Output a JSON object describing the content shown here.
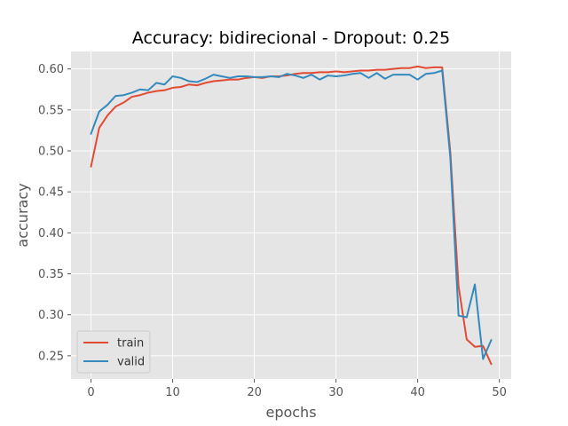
{
  "chart_data": {
    "type": "line",
    "title": "Accuracy: bidirecional - Dropout: 0.25",
    "xlabel": "epochs",
    "ylabel": "accuracy",
    "xlim": [
      -2.45,
      51.45
    ],
    "ylim": [
      0.2217,
      0.6213
    ],
    "x_ticks": [
      0,
      10,
      20,
      30,
      40,
      50
    ],
    "y_ticks": [
      0.25,
      0.3,
      0.35,
      0.4,
      0.45,
      0.5,
      0.55,
      0.6
    ],
    "grid": true,
    "legend_position": "lower-left",
    "background_color": "#e5e5e5",
    "grid_color": "#ffffff",
    "x": [
      0,
      1,
      2,
      3,
      4,
      5,
      6,
      7,
      8,
      9,
      10,
      11,
      12,
      13,
      14,
      15,
      16,
      17,
      18,
      19,
      20,
      21,
      22,
      23,
      24,
      25,
      26,
      27,
      28,
      29,
      30,
      31,
      32,
      33,
      34,
      35,
      36,
      37,
      38,
      39,
      40,
      41,
      42,
      43,
      44,
      45,
      46,
      47,
      48,
      49
    ],
    "series": [
      {
        "name": "train",
        "color": "#e24a33",
        "values": [
          0.481,
          0.528,
          0.543,
          0.554,
          0.559,
          0.566,
          0.568,
          0.571,
          0.573,
          0.574,
          0.577,
          0.578,
          0.581,
          0.58,
          0.583,
          0.585,
          0.586,
          0.587,
          0.587,
          0.589,
          0.59,
          0.589,
          0.591,
          0.591,
          0.592,
          0.594,
          0.595,
          0.595,
          0.596,
          0.596,
          0.597,
          0.596,
          0.597,
          0.598,
          0.598,
          0.599,
          0.599,
          0.6,
          0.601,
          0.601,
          0.603,
          0.601,
          0.602,
          0.602,
          0.498,
          0.335,
          0.27,
          0.261,
          0.262,
          0.24
        ]
      },
      {
        "name": "valid",
        "color": "#348abd",
        "values": [
          0.521,
          0.548,
          0.556,
          0.567,
          0.568,
          0.571,
          0.575,
          0.574,
          0.583,
          0.581,
          0.591,
          0.589,
          0.585,
          0.584,
          0.588,
          0.593,
          0.591,
          0.589,
          0.591,
          0.591,
          0.59,
          0.59,
          0.591,
          0.59,
          0.594,
          0.592,
          0.589,
          0.593,
          0.587,
          0.592,
          0.591,
          0.592,
          0.594,
          0.595,
          0.589,
          0.595,
          0.588,
          0.593,
          0.593,
          0.593,
          0.587,
          0.594,
          0.595,
          0.598,
          0.491,
          0.299,
          0.297,
          0.337,
          0.246,
          0.269
        ]
      }
    ]
  }
}
